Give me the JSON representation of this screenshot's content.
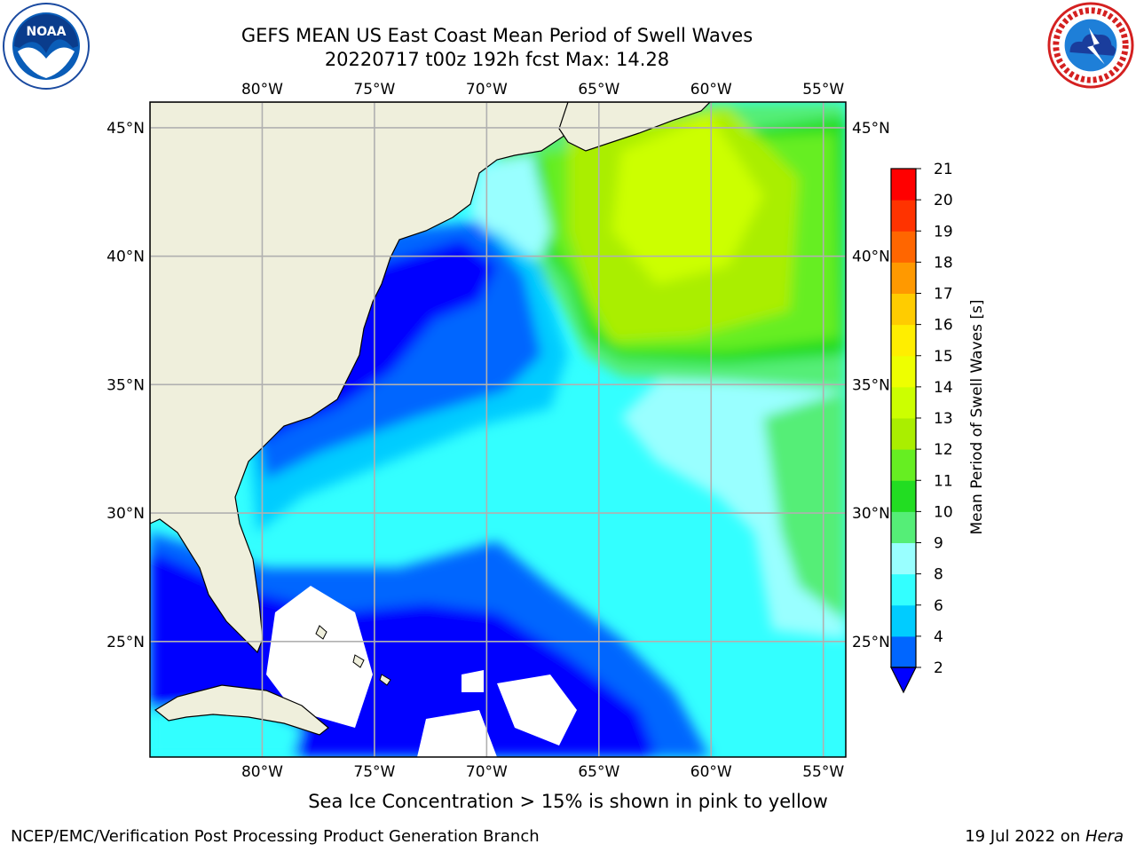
{
  "header": {
    "title_line1": "GEFS MEAN US East Coast Mean Period of Swell Waves",
    "title_line2": "20220717 t00z 192h fcst   Max: 14.28"
  },
  "logos": {
    "left": "noaa-logo-icon",
    "right": "nws-logo-icon"
  },
  "map": {
    "lon_labels": [
      "80°W",
      "75°W",
      "70°W",
      "65°W",
      "60°W",
      "55°W"
    ],
    "lat_labels": [
      "45°N",
      "40°N",
      "35°N",
      "30°N",
      "25°N"
    ],
    "lon_range": [
      -85,
      -54
    ],
    "lat_range": [
      20.5,
      46
    ],
    "land_color": "#efefdc",
    "grid_color": "#b0b0b0"
  },
  "colorbar": {
    "label": "Mean Period of Swell Waves [s]",
    "ticks": [
      "2",
      "4",
      "6",
      "8",
      "9",
      "10",
      "11",
      "12",
      "13",
      "14",
      "15",
      "16",
      "17",
      "18",
      "19",
      "20",
      "21"
    ],
    "colors": [
      "#0066ff",
      "#00ccff",
      "#33ffff",
      "#99ffff",
      "#55ee77",
      "#22dd22",
      "#66ee22",
      "#aaee00",
      "#ccff00",
      "#eeff00",
      "#ffee00",
      "#ffcc00",
      "#ff9900",
      "#ff6600",
      "#ff3300",
      "#ff0000"
    ],
    "under_color": "#0000ff",
    "extend": "min"
  },
  "footer": {
    "note": "Sea Ice Concentration > 15% is shown in pink to yellow",
    "credit": "NCEP/EMC/Verification Post Processing Product Generation Branch",
    "date": "19 Jul 2022 on ",
    "host": "Hera"
  }
}
